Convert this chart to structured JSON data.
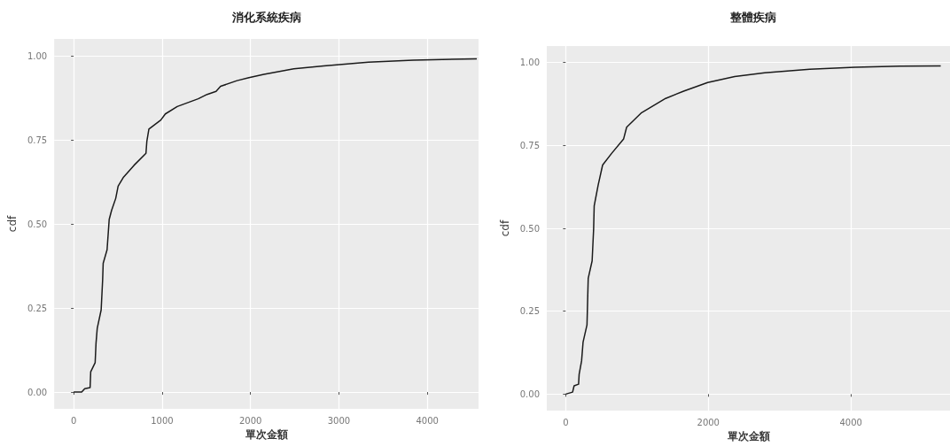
{
  "chart_data": [
    {
      "type": "line",
      "title": "消化系統疾病",
      "xlabel": "單次金額",
      "ylabel": "cdf",
      "xlim": [
        -220,
        4580
      ],
      "ylim": [
        -0.05,
        1.05
      ],
      "xticks": [
        0,
        1000,
        2000,
        3000,
        4000
      ],
      "yticks": [
        {
          "value": 0,
          "label": "0.00"
        },
        {
          "value": 0.25,
          "label": "0.25"
        },
        {
          "value": 0.5,
          "label": "0.50"
        },
        {
          "value": 0.75,
          "label": "0.75"
        },
        {
          "value": 1,
          "label": "1.00"
        }
      ],
      "grid": true,
      "marker": "none",
      "line_style": "solid",
      "series": [
        {
          "color": "#1a1a1a",
          "x": [
            0,
            91,
            125,
            186,
            193,
            243,
            253,
            267,
            311,
            328,
            334,
            378,
            402,
            429,
            476,
            503,
            564,
            682,
            818,
            828,
            851,
            986,
            1037,
            1172,
            1409,
            1510,
            1611,
            1662,
            1848,
            1983,
            2152,
            2490,
            2828,
            3334,
            3841,
            4560
          ],
          "values": [
            0,
            0,
            0.01,
            0.013,
            0.06,
            0.087,
            0.145,
            0.19,
            0.244,
            0.334,
            0.383,
            0.423,
            0.513,
            0.54,
            0.576,
            0.612,
            0.639,
            0.674,
            0.71,
            0.746,
            0.782,
            0.809,
            0.827,
            0.849,
            0.872,
            0.885,
            0.894,
            0.909,
            0.926,
            0.935,
            0.945,
            0.961,
            0.97,
            0.981,
            0.987,
            0.991
          ]
        }
      ]
    },
    {
      "type": "line",
      "title": "整體疾病",
      "xlabel": "單次金額",
      "ylabel": "cdf",
      "xlim": [
        -265,
        5390
      ],
      "ylim": [
        -0.05,
        1.05
      ],
      "xticks": [
        0,
        2000,
        4000
      ],
      "yticks": [
        {
          "value": 0,
          "label": "0.00"
        },
        {
          "value": 0.25,
          "label": "0.25"
        },
        {
          "value": 0.5,
          "label": "0.50"
        },
        {
          "value": 0.75,
          "label": "0.75"
        },
        {
          "value": 1,
          "label": "1.00"
        }
      ],
      "grid": true,
      "marker": "none",
      "line_style": "solid",
      "series": [
        {
          "color": "#1a1a1a",
          "x": [
            0,
            97,
            118,
            181,
            189,
            223,
            244,
            299,
            316,
            371,
            392,
            400,
            455,
            518,
            644,
            813,
            855,
            1065,
            1402,
            1655,
            1991,
            2370,
            2791,
            3423,
            4054,
            4686,
            5260
          ],
          "values": [
            0,
            0.006,
            0.025,
            0.03,
            0.06,
            0.1,
            0.157,
            0.209,
            0.349,
            0.402,
            0.498,
            0.568,
            0.63,
            0.691,
            0.726,
            0.77,
            0.805,
            0.849,
            0.892,
            0.914,
            0.94,
            0.958,
            0.969,
            0.98,
            0.986,
            0.989,
            0.99
          ]
        }
      ]
    }
  ]
}
